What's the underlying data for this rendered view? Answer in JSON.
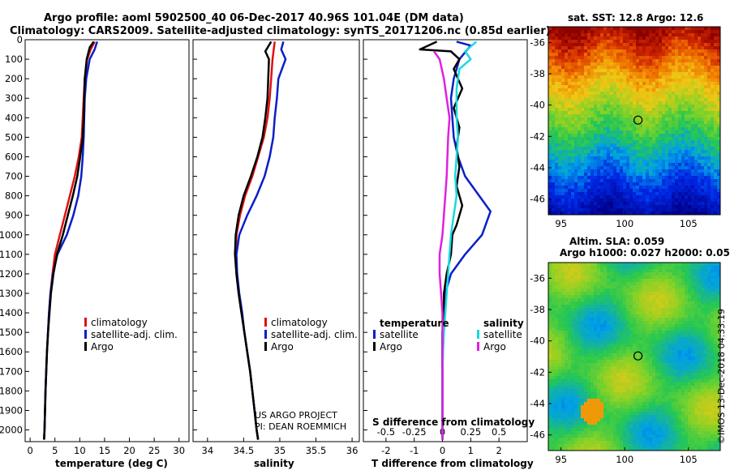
{
  "title_line1": "Argo profile: aoml 5902500_40 06-Dec-2017 40.96S 101.04E (DM data)",
  "title_line2": "Climatology: CARS2009. Satellite-adjusted climatology: synTS_20171206.nc (0.85d earlier)",
  "colors": {
    "climatology": "#e01010",
    "satellite": "#0a1ec8",
    "argo": "#000000",
    "sat_salinity": "#19d8e0",
    "argo_salinity": "#e020e0"
  },
  "legend_temp": [
    "climatology",
    "satellite-adj. clim.",
    "Argo"
  ],
  "legend_sal": [
    "climatology",
    "satellite-adj. clim.",
    "Argo"
  ],
  "legend_diff": {
    "temperature_head": "temperature",
    "salinity_head": "salinity",
    "t_satellite": "satellite",
    "t_argo": "Argo",
    "s_satellite": "satellite",
    "s_argo": "Argo"
  },
  "credit": [
    "US ARGO PROJECT",
    "PI: DEAN ROEMMICH"
  ],
  "sst_title": "sat. SST: 12.8 Argo: 12.6",
  "sla_title1": "Altim. SLA: 0.059",
  "sla_title2": "Argo h1000: 0.027 h2000: 0.05",
  "imos_stamp": "©IMOS 13-Dec-2018 04:33:19",
  "chart_data": [
    {
      "type": "line",
      "xlabel": "temperature (deg C)",
      "xlim": [
        -1,
        32
      ],
      "xticks": [
        0,
        5,
        10,
        15,
        20,
        25,
        30
      ],
      "ylim": [
        2060,
        0
      ],
      "yticks": [
        0,
        100,
        200,
        300,
        400,
        500,
        600,
        700,
        800,
        900,
        1000,
        1100,
        1200,
        1300,
        1400,
        1500,
        1600,
        1700,
        1800,
        1900,
        2000
      ],
      "series": [
        {
          "name": "climatology",
          "color": "#e01010",
          "points": [
            [
              13,
              10
            ],
            [
              12.2,
              50
            ],
            [
              11.5,
              100
            ],
            [
              11,
              200
            ],
            [
              10.8,
              300
            ],
            [
              10.6,
              400
            ],
            [
              10.4,
              500
            ],
            [
              9.8,
              600
            ],
            [
              9,
              700
            ],
            [
              8,
              800
            ],
            [
              7,
              900
            ],
            [
              6,
              1000
            ],
            [
              5,
              1100
            ],
            [
              4.5,
              1200
            ],
            [
              4.1,
              1300
            ],
            [
              3.8,
              1400
            ],
            [
              3.6,
              1500
            ],
            [
              3.4,
              1600
            ],
            [
              3.25,
              1700
            ],
            [
              3.1,
              1800
            ],
            [
              3,
              1900
            ],
            [
              2.9,
              2000
            ],
            [
              2.8,
              2050
            ]
          ]
        },
        {
          "name": "satellite-adj. clim.",
          "color": "#0a1ec8",
          "points": [
            [
              13.5,
              10
            ],
            [
              13,
              50
            ],
            [
              12,
              100
            ],
            [
              11.3,
              200
            ],
            [
              11,
              300
            ],
            [
              10.9,
              400
            ],
            [
              10.8,
              500
            ],
            [
              10.6,
              600
            ],
            [
              10.3,
              700
            ],
            [
              9.7,
              800
            ],
            [
              8.7,
              900
            ],
            [
              7.4,
              1000
            ],
            [
              5.5,
              1100
            ],
            [
              4.6,
              1200
            ],
            [
              4.1,
              1300
            ],
            [
              3.8,
              1400
            ],
            [
              3.6,
              1500
            ],
            [
              3.4,
              1600
            ],
            [
              3.25,
              1700
            ],
            [
              3.1,
              1800
            ],
            [
              3,
              1900
            ],
            [
              2.9,
              2000
            ],
            [
              2.8,
              2050
            ]
          ]
        },
        {
          "name": "Argo",
          "color": "#000000",
          "points": [
            [
              12.8,
              10
            ],
            [
              12,
              40
            ],
            [
              11.4,
              100
            ],
            [
              11,
              200
            ],
            [
              10.9,
              300
            ],
            [
              10.8,
              400
            ],
            [
              10.6,
              500
            ],
            [
              10.1,
              600
            ],
            [
              9.5,
              700
            ],
            [
              8.6,
              800
            ],
            [
              7.6,
              900
            ],
            [
              6.6,
              1000
            ],
            [
              5.4,
              1100
            ],
            [
              4.7,
              1200
            ],
            [
              4.2,
              1300
            ],
            [
              3.9,
              1400
            ],
            [
              3.6,
              1500
            ],
            [
              3.4,
              1600
            ],
            [
              3.25,
              1700
            ],
            [
              3.1,
              1800
            ],
            [
              3,
              1900
            ],
            [
              2.9,
              2000
            ],
            [
              2.8,
              2050
            ]
          ]
        }
      ]
    },
    {
      "type": "line",
      "xlabel": "salinity",
      "xlim": [
        33.8,
        36.1
      ],
      "xticks": [
        34,
        34.5,
        35,
        35.5,
        36
      ],
      "xtick_labels": [
        "34",
        "34.5",
        "35",
        "35.5",
        "36"
      ],
      "ylim": [
        2060,
        0
      ],
      "series": [
        {
          "name": "climatology",
          "color": "#e01010",
          "points": [
            [
              34.93,
              10
            ],
            [
              34.9,
              100
            ],
            [
              34.88,
              200
            ],
            [
              34.86,
              300
            ],
            [
              34.83,
              400
            ],
            [
              34.78,
              500
            ],
            [
              34.7,
              600
            ],
            [
              34.62,
              700
            ],
            [
              34.52,
              800
            ],
            [
              34.45,
              900
            ],
            [
              34.4,
              1000
            ],
            [
              34.39,
              1100
            ],
            [
              34.4,
              1200
            ],
            [
              34.43,
              1300
            ],
            [
              34.47,
              1400
            ],
            [
              34.51,
              1500
            ],
            [
              34.55,
              1600
            ],
            [
              34.59,
              1700
            ],
            [
              34.62,
              1800
            ],
            [
              34.65,
              1900
            ],
            [
              34.68,
              2000
            ],
            [
              34.7,
              2050
            ]
          ]
        },
        {
          "name": "satellite-adj. clim.",
          "color": "#0a1ec8",
          "points": [
            [
              35.05,
              10
            ],
            [
              35.02,
              50
            ],
            [
              35.08,
              100
            ],
            [
              34.98,
              200
            ],
            [
              34.96,
              300
            ],
            [
              34.93,
              400
            ],
            [
              34.91,
              500
            ],
            [
              34.86,
              600
            ],
            [
              34.79,
              700
            ],
            [
              34.68,
              800
            ],
            [
              34.55,
              900
            ],
            [
              34.44,
              1000
            ],
            [
              34.4,
              1100
            ],
            [
              34.41,
              1200
            ],
            [
              34.44,
              1300
            ],
            [
              34.48,
              1400
            ],
            [
              34.51,
              1500
            ],
            [
              34.55,
              1600
            ],
            [
              34.59,
              1700
            ],
            [
              34.62,
              1800
            ],
            [
              34.65,
              1900
            ],
            [
              34.68,
              2000
            ],
            [
              34.7,
              2050
            ]
          ]
        },
        {
          "name": "Argo",
          "color": "#000000",
          "points": [
            [
              34.88,
              10
            ],
            [
              34.8,
              60
            ],
            [
              34.85,
              100
            ],
            [
              34.84,
              200
            ],
            [
              34.83,
              300
            ],
            [
              34.8,
              400
            ],
            [
              34.76,
              500
            ],
            [
              34.69,
              600
            ],
            [
              34.6,
              700
            ],
            [
              34.5,
              800
            ],
            [
              34.43,
              900
            ],
            [
              34.39,
              1000
            ],
            [
              34.38,
              1100
            ],
            [
              34.4,
              1200
            ],
            [
              34.43,
              1300
            ],
            [
              34.47,
              1400
            ],
            [
              34.51,
              1500
            ],
            [
              34.55,
              1600
            ],
            [
              34.59,
              1700
            ],
            [
              34.62,
              1800
            ],
            [
              34.65,
              1900
            ],
            [
              34.68,
              2000
            ],
            [
              34.7,
              2050
            ]
          ]
        }
      ]
    },
    {
      "type": "line",
      "xlabel": "T difference from climatology",
      "xlabel_top": "S difference from climatology",
      "xlim": [
        -2.8,
        3.0
      ],
      "xticks": [
        -2,
        -1,
        0,
        1,
        2
      ],
      "xticks_top": [
        -2,
        -1,
        0,
        1,
        2
      ],
      "xtick_top_labels": [
        "-0.5",
        "-0.25",
        "0",
        "0.25",
        "0.5"
      ],
      "ylim": [
        2060,
        0
      ],
      "series": [
        {
          "name": "T satellite",
          "color": "#0a1ec8",
          "points": [
            [
              0.5,
              10
            ],
            [
              1,
              30
            ],
            [
              0.6,
              100
            ],
            [
              0.4,
              200
            ],
            [
              0.3,
              300
            ],
            [
              0.35,
              400
            ],
            [
              0.4,
              500
            ],
            [
              0.55,
              600
            ],
            [
              0.8,
              700
            ],
            [
              1.3,
              800
            ],
            [
              1.7,
              880
            ],
            [
              1.4,
              1000
            ],
            [
              0.8,
              1100
            ],
            [
              0.3,
              1200
            ],
            [
              0.1,
              1300
            ],
            [
              0.05,
              1400
            ],
            [
              0,
              1500
            ],
            [
              0,
              2050
            ]
          ]
        },
        {
          "name": "T Argo",
          "color": "#000000",
          "points": [
            [
              -0.2,
              10
            ],
            [
              -0.8,
              50
            ],
            [
              0.3,
              60
            ],
            [
              0.6,
              100
            ],
            [
              0.4,
              150
            ],
            [
              0.7,
              250
            ],
            [
              0.4,
              350
            ],
            [
              0.6,
              450
            ],
            [
              0.5,
              550
            ],
            [
              0.6,
              650
            ],
            [
              0.5,
              750
            ],
            [
              0.7,
              850
            ],
            [
              0.5,
              950
            ],
            [
              0.35,
              1000
            ],
            [
              0.3,
              1100
            ],
            [
              0.15,
              1200
            ],
            [
              0.05,
              1300
            ],
            [
              0.05,
              1400
            ],
            [
              0,
              1500
            ],
            [
              0,
              2050
            ]
          ]
        },
        {
          "name": "S satellite",
          "color": "#19d8e0",
          "points": [
            [
              1.2,
              10
            ],
            [
              0.8,
              60
            ],
            [
              1.0,
              100
            ],
            [
              0.6,
              150
            ],
            [
              0.5,
              250
            ],
            [
              0.5,
              400
            ],
            [
              0.55,
              500
            ],
            [
              0.5,
              600
            ],
            [
              0.45,
              700
            ],
            [
              0.5,
              800
            ],
            [
              0.4,
              900
            ],
            [
              0.3,
              1000
            ],
            [
              0.25,
              1100
            ],
            [
              0.2,
              1200
            ],
            [
              0.15,
              1300
            ],
            [
              0.1,
              1400
            ],
            [
              0.05,
              1500
            ],
            [
              0.02,
              1600
            ],
            [
              0,
              1700
            ],
            [
              0,
              2050
            ]
          ]
        },
        {
          "name": "S Argo",
          "color": "#e020e0",
          "points": [
            [
              -0.3,
              60
            ],
            [
              -0.1,
              100
            ],
            [
              0.05,
              200
            ],
            [
              0.15,
              300
            ],
            [
              0.25,
              400
            ],
            [
              0.2,
              500
            ],
            [
              0.15,
              700
            ],
            [
              0.1,
              800
            ],
            [
              0.0,
              1000
            ],
            [
              -0.1,
              1100
            ],
            [
              -0.1,
              1200
            ],
            [
              -0.05,
              1300
            ],
            [
              0,
              1400
            ],
            [
              0,
              2050
            ]
          ]
        }
      ]
    },
    {
      "type": "heatmap",
      "title": "sat. SST: 12.8 Argo: 12.6",
      "x_range": [
        94,
        107.5
      ],
      "y_range": [
        -47,
        -35
      ],
      "xticks": [
        95,
        100,
        105
      ],
      "yticks": [
        -36,
        -38,
        -40,
        -42,
        -44,
        -46
      ],
      "marker": {
        "lon": 101.04,
        "lat": -40.96
      }
    },
    {
      "type": "heatmap",
      "title": "Altim. SLA: 0.059",
      "x_range": [
        94,
        107.5
      ],
      "y_range": [
        -47,
        -35
      ],
      "xticks": [
        95,
        100,
        105
      ],
      "yticks": [
        -36,
        -38,
        -40,
        -42,
        -44,
        -46
      ],
      "marker": {
        "lon": 101.04,
        "lat": -40.96
      }
    }
  ]
}
